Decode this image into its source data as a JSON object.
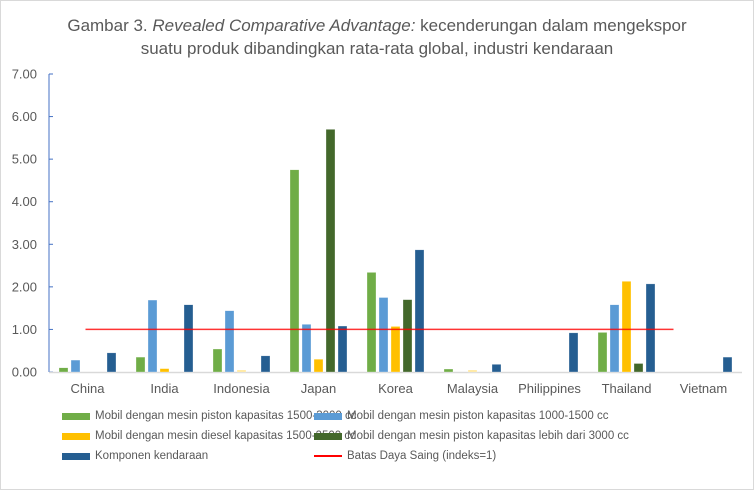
{
  "title": {
    "prefix": "Gambar 3. ",
    "italic": "Revealed Comparative Advantage:",
    "suffix": " kecenderungan dalam mengekspor",
    "line2": "suatu produk dibandingkan rata-rata global, industri kendaraan"
  },
  "chart_data": {
    "type": "bar",
    "title": "Gambar 3. Revealed Comparative Advantage: kecenderungan dalam mengekspor suatu produk dibandingkan rata-rata global, industri kendaraan",
    "xlabel": "",
    "ylabel": "",
    "ylim": [
      0,
      7
    ],
    "yticks": [
      "0.00",
      "1.00",
      "2.00",
      "3.00",
      "4.00",
      "5.00",
      "6.00",
      "7.00"
    ],
    "grid": false,
    "legend_position": "bottom",
    "categories": [
      "China",
      "India",
      "Indonesia",
      "Japan",
      "Korea",
      "Malaysia",
      "Philippines",
      "Thailand",
      "Vietnam"
    ],
    "series": [
      {
        "name": "Mobil dengan mesin piston kapasitas 1500-3000 cc",
        "color": "#70ad47",
        "values": [
          0.1,
          0.35,
          0.54,
          4.75,
          2.34,
          0.07,
          0,
          0.93,
          0
        ]
      },
      {
        "name": "Mobil dengan mesin piston kapasitas 1000-1500 cc",
        "color": "#5b9bd5",
        "values": [
          0.28,
          1.69,
          1.44,
          1.12,
          1.75,
          0,
          0,
          1.58,
          0
        ]
      },
      {
        "name": "Mobil dengan mesin diesel kapasitas 1500-2500 cc",
        "color": "#ffc000",
        "values": [
          0,
          0.08,
          0.03,
          0.3,
          1.07,
          0.03,
          0,
          2.13,
          0
        ]
      },
      {
        "name": "Mobil dengan mesin piston kapasitas lebih dari 3000 cc",
        "color": "#43682b",
        "values": [
          0,
          0,
          0,
          5.7,
          1.7,
          0,
          0,
          0.2,
          0
        ]
      },
      {
        "name": "Komponen kendaraan",
        "color": "#255e91",
        "values": [
          0.45,
          1.58,
          0.38,
          1.08,
          2.87,
          0.18,
          0.92,
          2.07,
          0.35
        ]
      }
    ],
    "reference_line": {
      "name": "Batas Daya Saing (indeks=1)",
      "value": 1,
      "color": "#ff0000"
    }
  }
}
